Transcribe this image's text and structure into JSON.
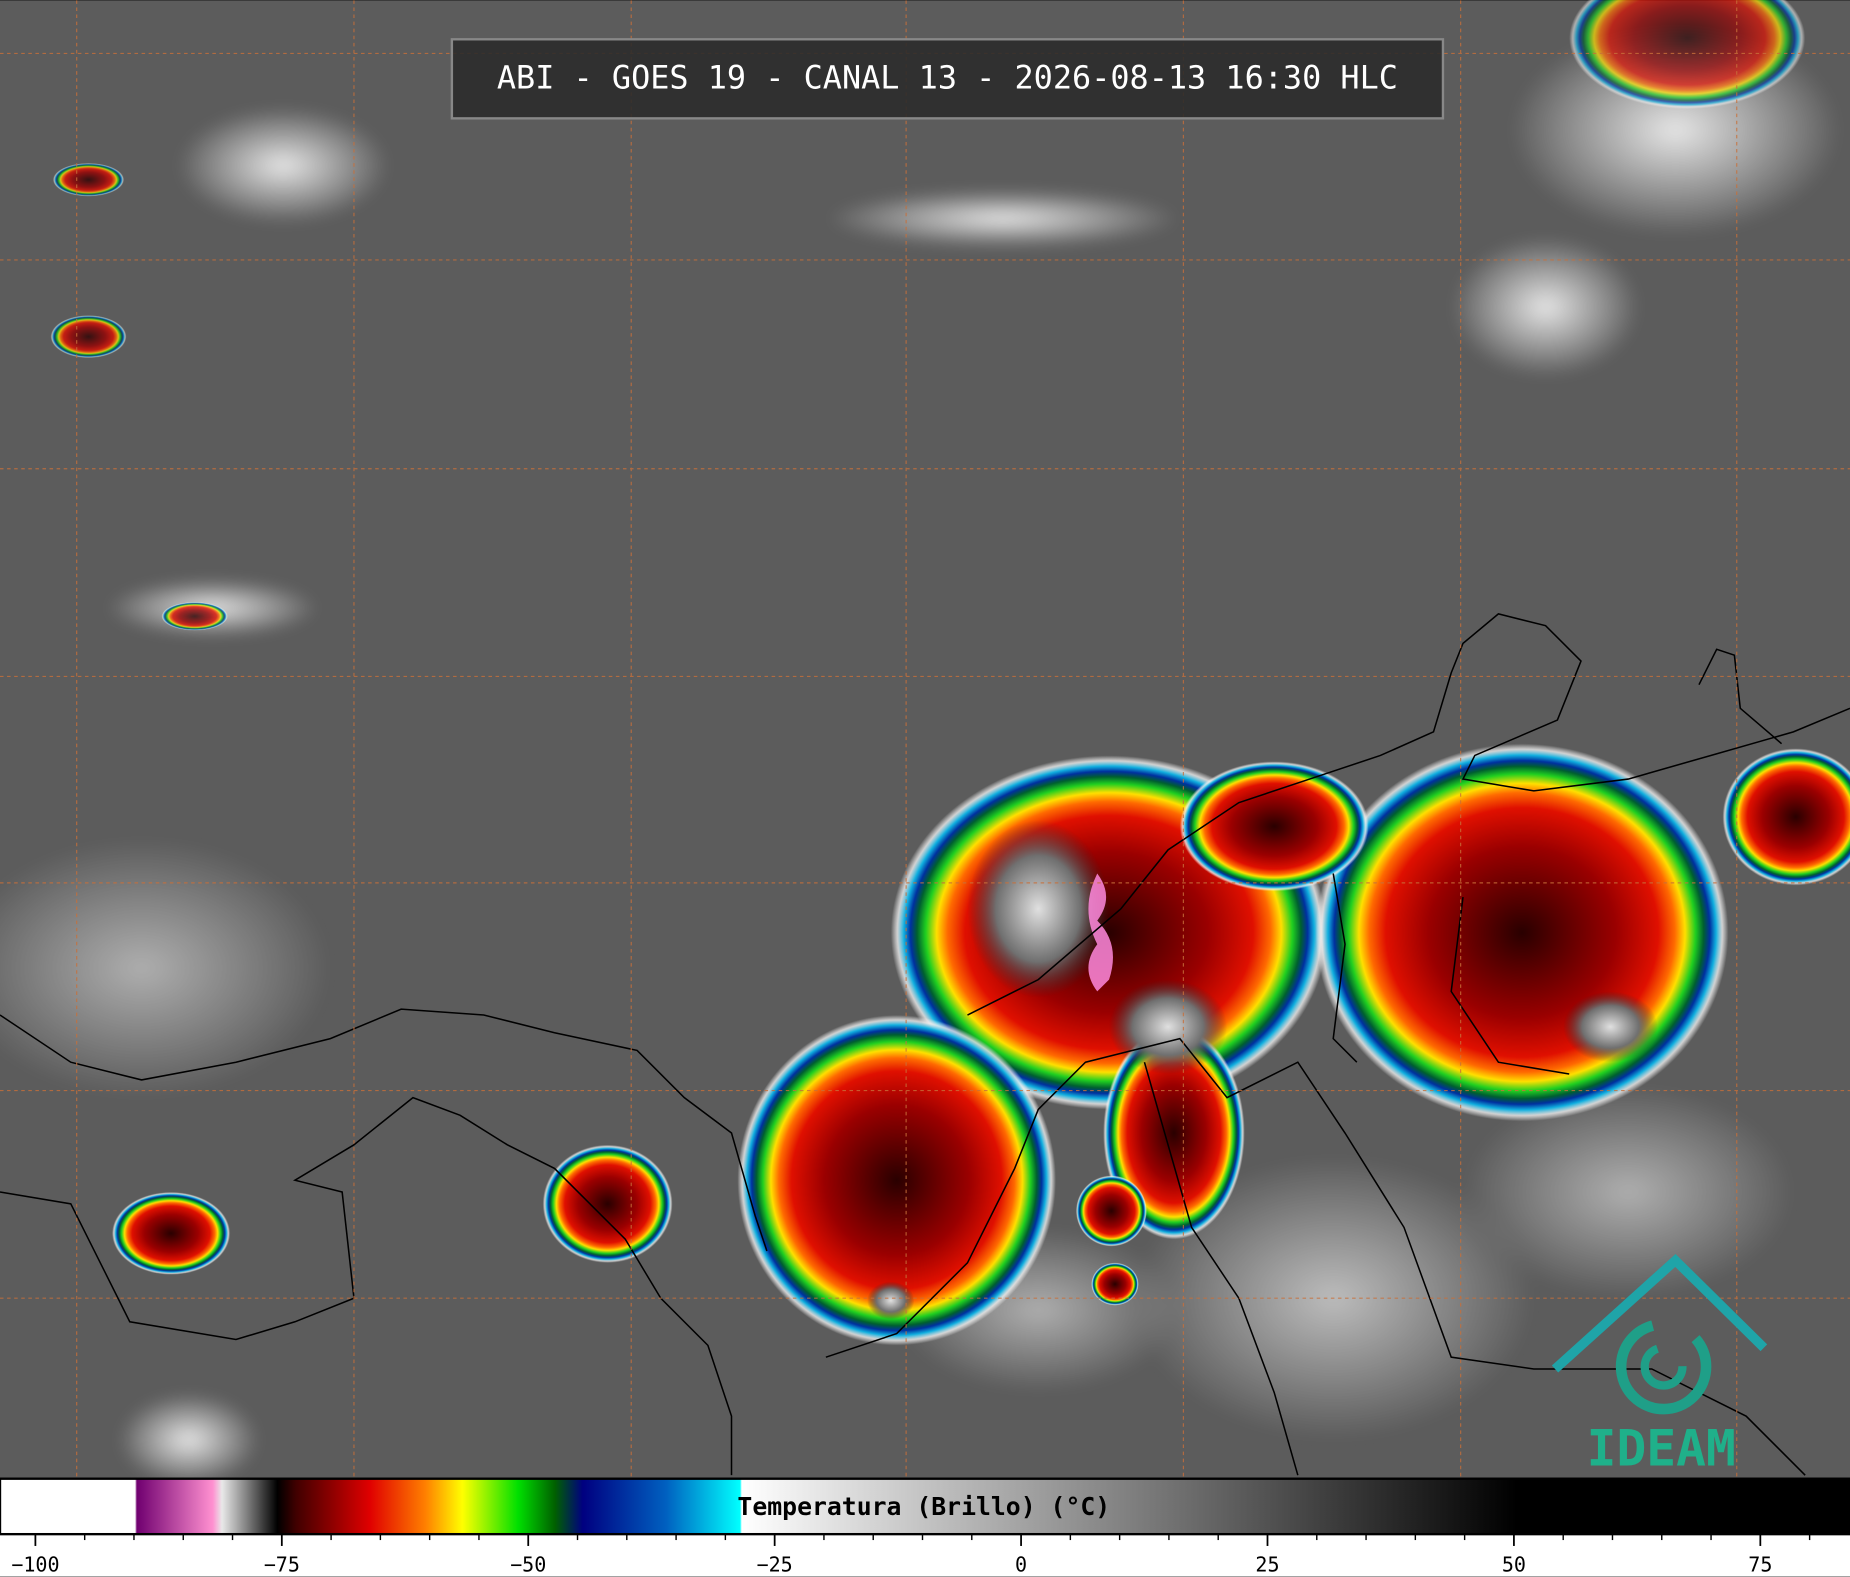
{
  "header": {
    "title": "ABI - GOES 19 - CANAL 13 - 2026-08-13 16:30 HLC"
  },
  "logo": {
    "text": "IDEAM"
  },
  "colorbar": {
    "label": "Temperatura (Brillo) (°C)",
    "ticks": [
      {
        "value": -100,
        "label": "−100"
      },
      {
        "value": -75,
        "label": "−75"
      },
      {
        "value": -50,
        "label": "−50"
      },
      {
        "value": -25,
        "label": "−25"
      },
      0,
      25,
      50,
      75
    ],
    "minor_ticks": [
      -95,
      -90,
      -85,
      -80,
      -70,
      -65,
      -60,
      -55,
      -45,
      -40,
      -35,
      -30,
      -20,
      -15,
      -10,
      -5,
      5,
      10,
      15,
      20,
      30,
      35,
      40,
      45,
      55,
      60,
      65,
      70,
      80
    ]
  }
}
